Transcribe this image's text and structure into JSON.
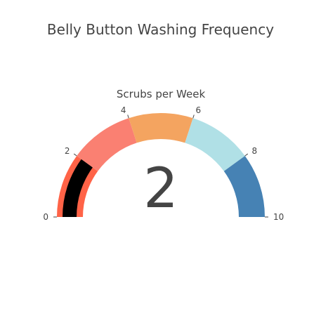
{
  "chart_data": {
    "type": "gauge",
    "title": "Belly Button Washing Frequency",
    "subtitle": "Scrubs per Week",
    "value": 2,
    "value_label": "2",
    "range": [
      0,
      10
    ],
    "ticks": [
      0,
      2,
      4,
      6,
      8,
      10
    ],
    "tick_labels": [
      "0",
      "2",
      "4",
      "6",
      "8",
      "10"
    ],
    "steps": [
      {
        "range": [
          0,
          2
        ],
        "color": "#ff6347"
      },
      {
        "range": [
          2,
          4
        ],
        "color": "#fa8072"
      },
      {
        "range": [
          4,
          6
        ],
        "color": "#f4a460"
      },
      {
        "range": [
          6,
          8
        ],
        "color": "#b0e0e6"
      },
      {
        "range": [
          8,
          10
        ],
        "color": "#4682b4"
      }
    ],
    "bar_color": "#000000"
  }
}
